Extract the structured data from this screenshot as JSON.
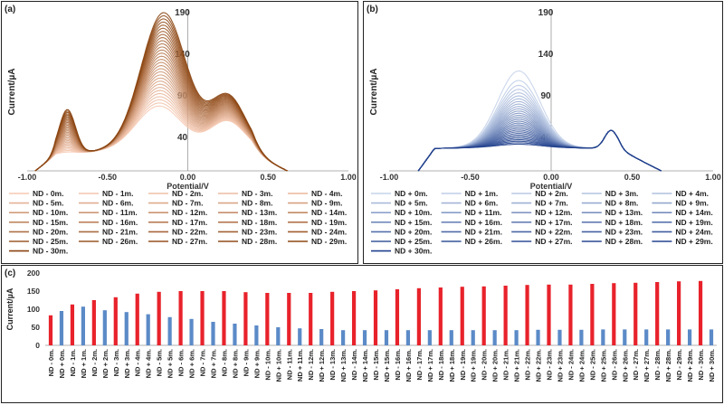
{
  "panels": {
    "a": {
      "label": "(a)",
      "ylabel": "Current/µA",
      "xlabel": "Potential/V",
      "xticks": [
        "-1.00",
        "-0.50",
        "0.00",
        "0.50",
        "1.00"
      ],
      "yticks": [
        "190",
        "140",
        "90",
        "40"
      ],
      "colors": {
        "light": "#f6c9b2",
        "dark": "#8a4410"
      }
    },
    "b": {
      "label": "(b)",
      "ylabel": "Current/µA",
      "xlabel": "Potential/V",
      "xticks": [
        "-1.00",
        "-0.50",
        "0.00",
        "0.50",
        "1.00"
      ],
      "yticks": [
        "190",
        "140",
        "90",
        "40"
      ],
      "colors": {
        "light": "#c5d3ea",
        "dark": "#1f3f8c"
      }
    },
    "c": {
      "label": "(c)",
      "ylabel": "Current/µA",
      "yticks": [
        "0",
        "50",
        "100",
        "150",
        "200"
      ],
      "colors": {
        "red": "#e8222b",
        "blue": "#5b8ac7"
      }
    }
  },
  "legend_a": [
    "ND - 0m.",
    "ND - 1m.",
    "ND - 2m.",
    "ND - 3m.",
    "ND - 4m.",
    "ND - 5m.",
    "ND - 6m.",
    "ND - 7m.",
    "ND - 8m.",
    "ND - 9m.",
    "ND - 10m.",
    "ND - 11m.",
    "ND - 12m.",
    "ND - 13m.",
    "ND - 14m.",
    "ND - 15m.",
    "ND - 16m.",
    "ND - 17m.",
    "ND - 18m.",
    "ND - 19m.",
    "ND - 20m.",
    "ND - 21m.",
    "ND - 22m.",
    "ND - 23m.",
    "ND - 24m.",
    "ND - 25m.",
    "ND - 26m.",
    "ND - 27m.",
    "ND - 28m.",
    "ND - 29m.",
    "ND - 30m."
  ],
  "legend_b": [
    "ND + 0m.",
    "ND + 1m.",
    "ND + 2m.",
    "ND + 3m.",
    "ND + 4m.",
    "ND + 5m.",
    "ND + 6m.",
    "ND + 7m.",
    "ND + 8m.",
    "ND + 9m.",
    "ND + 10m.",
    "ND + 11m.",
    "ND + 12m.",
    "ND + 13m.",
    "ND + 14m.",
    "ND + 15m.",
    "ND + 16m.",
    "ND + 17m.",
    "ND + 18m.",
    "ND + 19m.",
    "ND + 20m.",
    "ND + 21m.",
    "ND + 22m.",
    "ND + 23m.",
    "ND + 24m.",
    "ND + 25m.",
    "ND + 26m.",
    "ND + 27m.",
    "ND + 28m.",
    "ND + 29m.",
    "ND + 30m."
  ],
  "chart_data": [
    {
      "type": "line",
      "panel": "a",
      "xlabel": "Potential/V",
      "ylabel": "Current/µA",
      "xlim": [
        -1.0,
        1.0
      ],
      "ylim": [
        0,
        190
      ],
      "series_template": "ND - {n}m.",
      "n_series": 31,
      "peak_potentials_V": [
        -0.75,
        -0.18,
        0.25
      ],
      "peak1_currents": [
        20,
        71
      ],
      "peak2_currents": [
        70,
        182
      ],
      "peak3_currents": [
        60,
        90
      ]
    },
    {
      "type": "line",
      "panel": "b",
      "xlabel": "Potential/V",
      "ylabel": "Current/µA",
      "xlim": [
        -1.0,
        1.0
      ],
      "ylim": [
        0,
        190
      ],
      "series_template": "ND + {n}m.",
      "n_series": 31,
      "peak_potentials_V": [
        -0.2,
        0.37
      ],
      "peak1_currents": [
        120,
        32
      ],
      "peak2_currents": [
        53,
        53
      ]
    },
    {
      "type": "bar",
      "panel": "c",
      "ylabel": "Current/µA",
      "ylim": [
        0,
        200
      ],
      "categories": [
        "ND - 0m.",
        "ND + 0m.",
        "ND - 1m.",
        "ND + 1m.",
        "ND - 2m.",
        "ND + 2m.",
        "ND - 3m.",
        "ND + 3m.",
        "ND - 4m.",
        "ND + 4m.",
        "ND - 5m.",
        "ND + 5m.",
        "ND - 6m.",
        "ND + 6m.",
        "ND - 7m.",
        "ND + 7m.",
        "ND - 8m.",
        "ND + 8m.",
        "ND - 9m.",
        "ND + 9m.",
        "ND - 10m.",
        "ND + 10m.",
        "ND - 11m.",
        "ND + 11m.",
        "ND - 12m.",
        "ND + 12m.",
        "ND - 13m.",
        "ND + 13m.",
        "ND - 14m.",
        "ND + 14m.",
        "ND - 15m.",
        "ND + 15m.",
        "ND - 16m.",
        "ND + 16m.",
        "ND - 17m.",
        "ND + 17m.",
        "ND - 18m.",
        "ND + 18m.",
        "ND - 19m.",
        "ND + 19m.",
        "ND - 20m.",
        "ND + 20m.",
        "ND - 21m.",
        "ND + 21m.",
        "ND - 22m.",
        "ND + 22m.",
        "ND - 23m.",
        "ND + 23m.",
        "ND - 24m.",
        "ND + 24m.",
        "ND - 25m.",
        "ND + 25m.",
        "ND - 26m.",
        "ND + 26m.",
        "ND - 27m.",
        "ND + 27m.",
        "ND - 28m.",
        "ND + 28m.",
        "ND - 29m.",
        "ND + 29m.",
        "ND - 30m.",
        "ND + 30m."
      ],
      "values": [
        83,
        95,
        113,
        107,
        125,
        97,
        133,
        92,
        143,
        86,
        148,
        78,
        150,
        73,
        150,
        65,
        150,
        60,
        147,
        55,
        145,
        50,
        145,
        47,
        145,
        45,
        148,
        42,
        150,
        42,
        152,
        42,
        155,
        42,
        158,
        42,
        160,
        42,
        162,
        42,
        163,
        42,
        165,
        42,
        167,
        43,
        168,
        43,
        168,
        43,
        170,
        44,
        172,
        44,
        173,
        44,
        175,
        44,
        177,
        44,
        178,
        44
      ]
    }
  ]
}
